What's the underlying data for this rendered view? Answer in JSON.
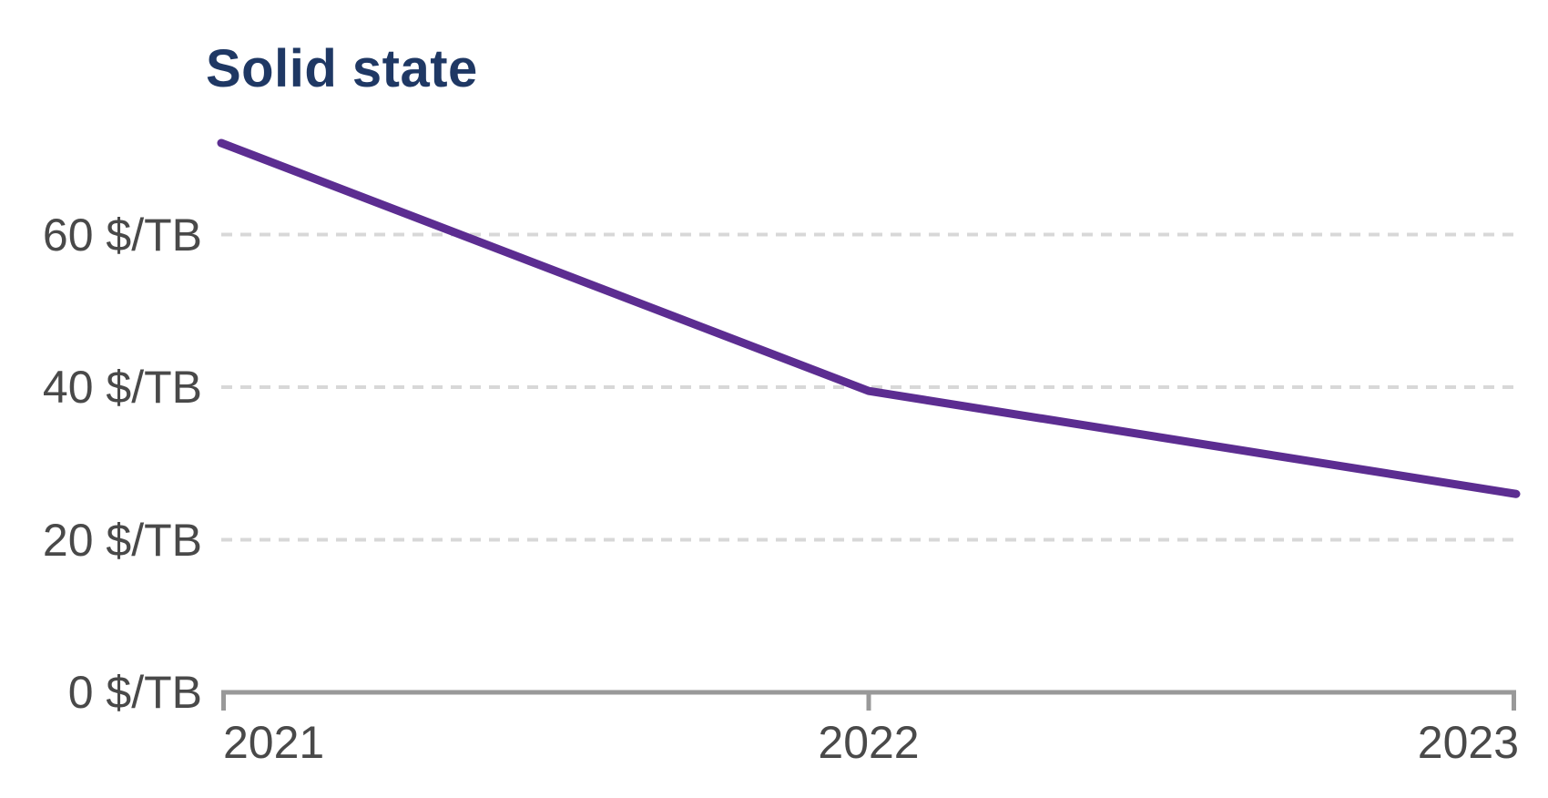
{
  "chart_data": {
    "type": "line",
    "title": "Solid state",
    "x_labels": [
      "2021",
      "2022",
      "2023"
    ],
    "series": [
      {
        "name": "Solid state",
        "values": [
          72,
          39.5,
          26
        ],
        "color": "#5c2d91"
      }
    ],
    "y_ticks": [
      {
        "value": 0,
        "label": "0 $/TB"
      },
      {
        "value": 20,
        "label": "20 $/TB"
      },
      {
        "value": 40,
        "label": "40 $/TB"
      },
      {
        "value": 60,
        "label": "60 $/TB"
      }
    ],
    "ylim": [
      0,
      80
    ],
    "ylabel": "$/TB",
    "grid": "horizontal-dashed",
    "legend": "none"
  },
  "colors": {
    "background": "#ffffff",
    "title": "#1f3864",
    "line": "#5c2d91",
    "axis": "#999999",
    "tick_label": "#494949",
    "gridline": "#d8d8d8"
  }
}
